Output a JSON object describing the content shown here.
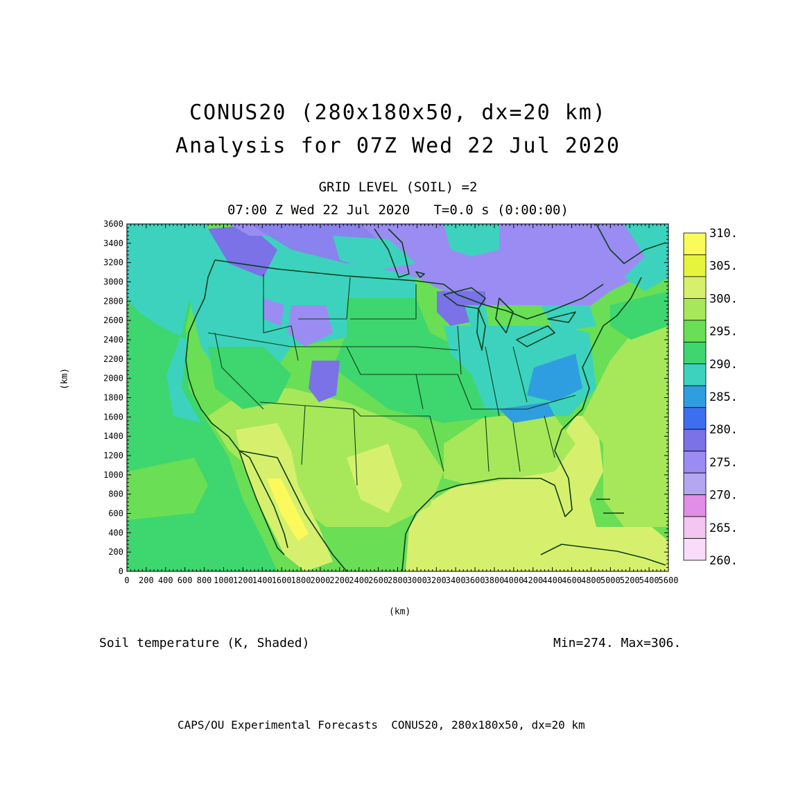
{
  "header": {
    "title_line1": "CONUS20 (280x180x50, dx=20 km)",
    "title_line2": "Analysis for 07Z Wed 22 Jul 2020",
    "level": "GRID LEVEL (SOIL) =2",
    "time": "07:00 Z Wed 22 Jul 2020   T=0.0 s (0:00:00)"
  },
  "axes": {
    "x_ticks": [
      "0",
      "200",
      "400",
      "600",
      "800",
      "1000",
      "1200",
      "1400",
      "1600",
      "1800",
      "2000",
      "2200",
      "2400",
      "2600",
      "2800",
      "3000",
      "3200",
      "3400",
      "3600",
      "3800",
      "4000",
      "4200",
      "4400",
      "4600",
      "4800",
      "5000",
      "5200",
      "5400",
      "5600"
    ],
    "y_ticks": [
      "0",
      "200",
      "400",
      "600",
      "800",
      "1000",
      "1200",
      "1400",
      "1600",
      "1800",
      "2000",
      "2200",
      "2400",
      "2600",
      "2800",
      "3000",
      "3200",
      "3400",
      "3600"
    ],
    "x_unit": "(km)",
    "y_unit": "(km)",
    "x_range": [
      0,
      5600
    ],
    "y_range": [
      0,
      3600
    ]
  },
  "legend": {
    "labels": [
      "310.",
      "305.",
      "300.",
      "295.",
      "290.",
      "285.",
      "280.",
      "275.",
      "270.",
      "265.",
      "260."
    ],
    "colors": [
      "#fafa5a",
      "#e6f53c",
      "#d6f06e",
      "#a6e85a",
      "#6ade55",
      "#3ed66e",
      "#3cd2be",
      "#2e9ee0",
      "#3e6ef0",
      "#7a72e6",
      "#9a8cf2",
      "#b4a6f0",
      "#e08ee6",
      "#f2c6f0",
      "#fadcfa"
    ]
  },
  "footer": {
    "field": "Soil temperature (K, Shaded)",
    "minmax": "Min=274. Max=306.",
    "credit": "CAPS/OU Experimental Forecasts  CONUS20, 280x180x50, dx=20 km"
  },
  "colors": {
    "outline": "#0b3d16",
    "gulf": "#d8ee72",
    "ocean_west": "#43da6a",
    "ocean_east": "#9ee45a"
  }
}
